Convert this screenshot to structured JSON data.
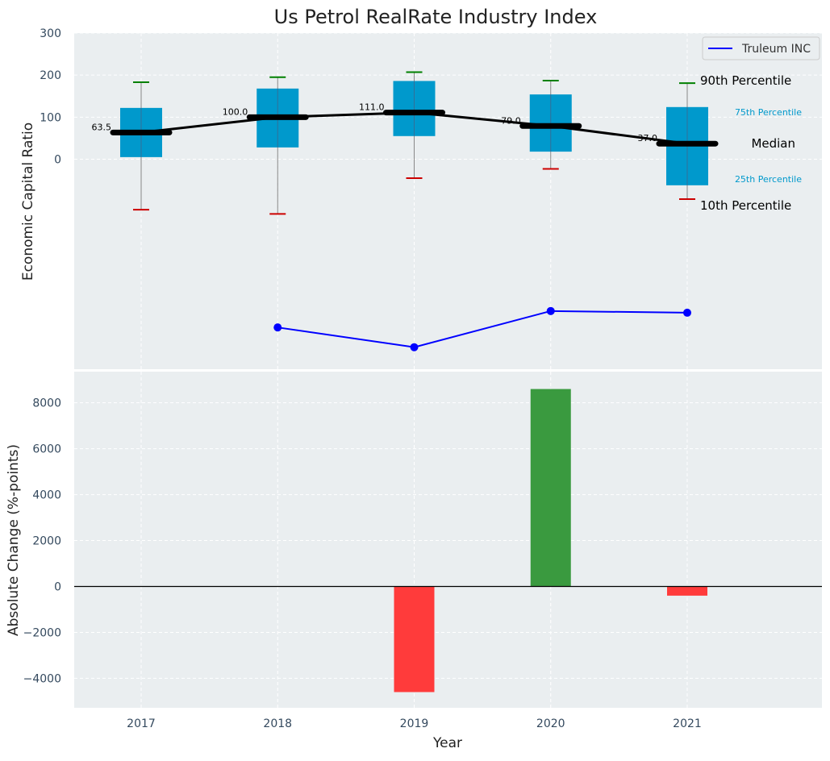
{
  "chart_data": [
    {
      "type": "box",
      "title": "Us Petrol RealRate Industry Index",
      "ylabel": "Economic Capital Ratio",
      "ylim_ticks": [
        0,
        100,
        200,
        300
      ],
      "categories": [
        "2017",
        "2018",
        "2019",
        "2020",
        "2021"
      ],
      "boxes": [
        {
          "year": "2017",
          "p10": -120,
          "p25": 5,
          "median": 63.5,
          "p75": 122,
          "p90": 183
        },
        {
          "year": "2018",
          "p10": -130,
          "p25": 28,
          "median": 100.0,
          "p75": 168,
          "p90": 195
        },
        {
          "year": "2019",
          "p10": -45,
          "p25": 55,
          "median": 111.0,
          "p75": 186,
          "p90": 207
        },
        {
          "year": "2020",
          "p10": -23,
          "p25": 18,
          "median": 79.0,
          "p75": 154,
          "p90": 187
        },
        {
          "year": "2021",
          "p10": -95,
          "p25": -62,
          "median": 37.0,
          "p75": 124,
          "p90": 181
        }
      ],
      "median_labels": [
        "63.5",
        "100.0",
        "111.0",
        "79.0",
        "37.0"
      ],
      "legend": {
        "entries": [
          "Truleum INC"
        ],
        "placement": "top-right"
      },
      "company_series": {
        "name": "Truleum INC",
        "color": "#0000ff",
        "points": [
          {
            "year": "2018",
            "value": -400
          },
          {
            "year": "2019",
            "value": -447
          },
          {
            "year": "2020",
            "value": -361
          },
          {
            "year": "2021",
            "value": -365
          }
        ]
      },
      "annotations": {
        "p90": "90th Percentile",
        "p75": "75th Percentile",
        "median": "Median",
        "p25": "25th Percentile",
        "p10": "10th Percentile"
      },
      "colors": {
        "box": "#0099cc",
        "median_line": "#000000",
        "p90_cap": "#008000",
        "p10_cap": "#cc0000",
        "background": "#eaeef0"
      },
      "grid": true
    },
    {
      "type": "bar",
      "ylabel": "Absolute Change (%-points)",
      "xlabel": "Year",
      "categories": [
        "2017",
        "2018",
        "2019",
        "2020",
        "2021"
      ],
      "values": [
        null,
        null,
        -4600,
        8600,
        -400
      ],
      "yticks": [
        -4000,
        -2000,
        0,
        2000,
        4000,
        6000,
        8000
      ],
      "ytick_labels": [
        "−4000",
        "−2000",
        "0",
        "2000",
        "4000",
        "6000",
        "8000"
      ],
      "colors": {
        "positive": "#3a9a3f",
        "negative": "#ff3b3b"
      },
      "grid": true
    }
  ]
}
